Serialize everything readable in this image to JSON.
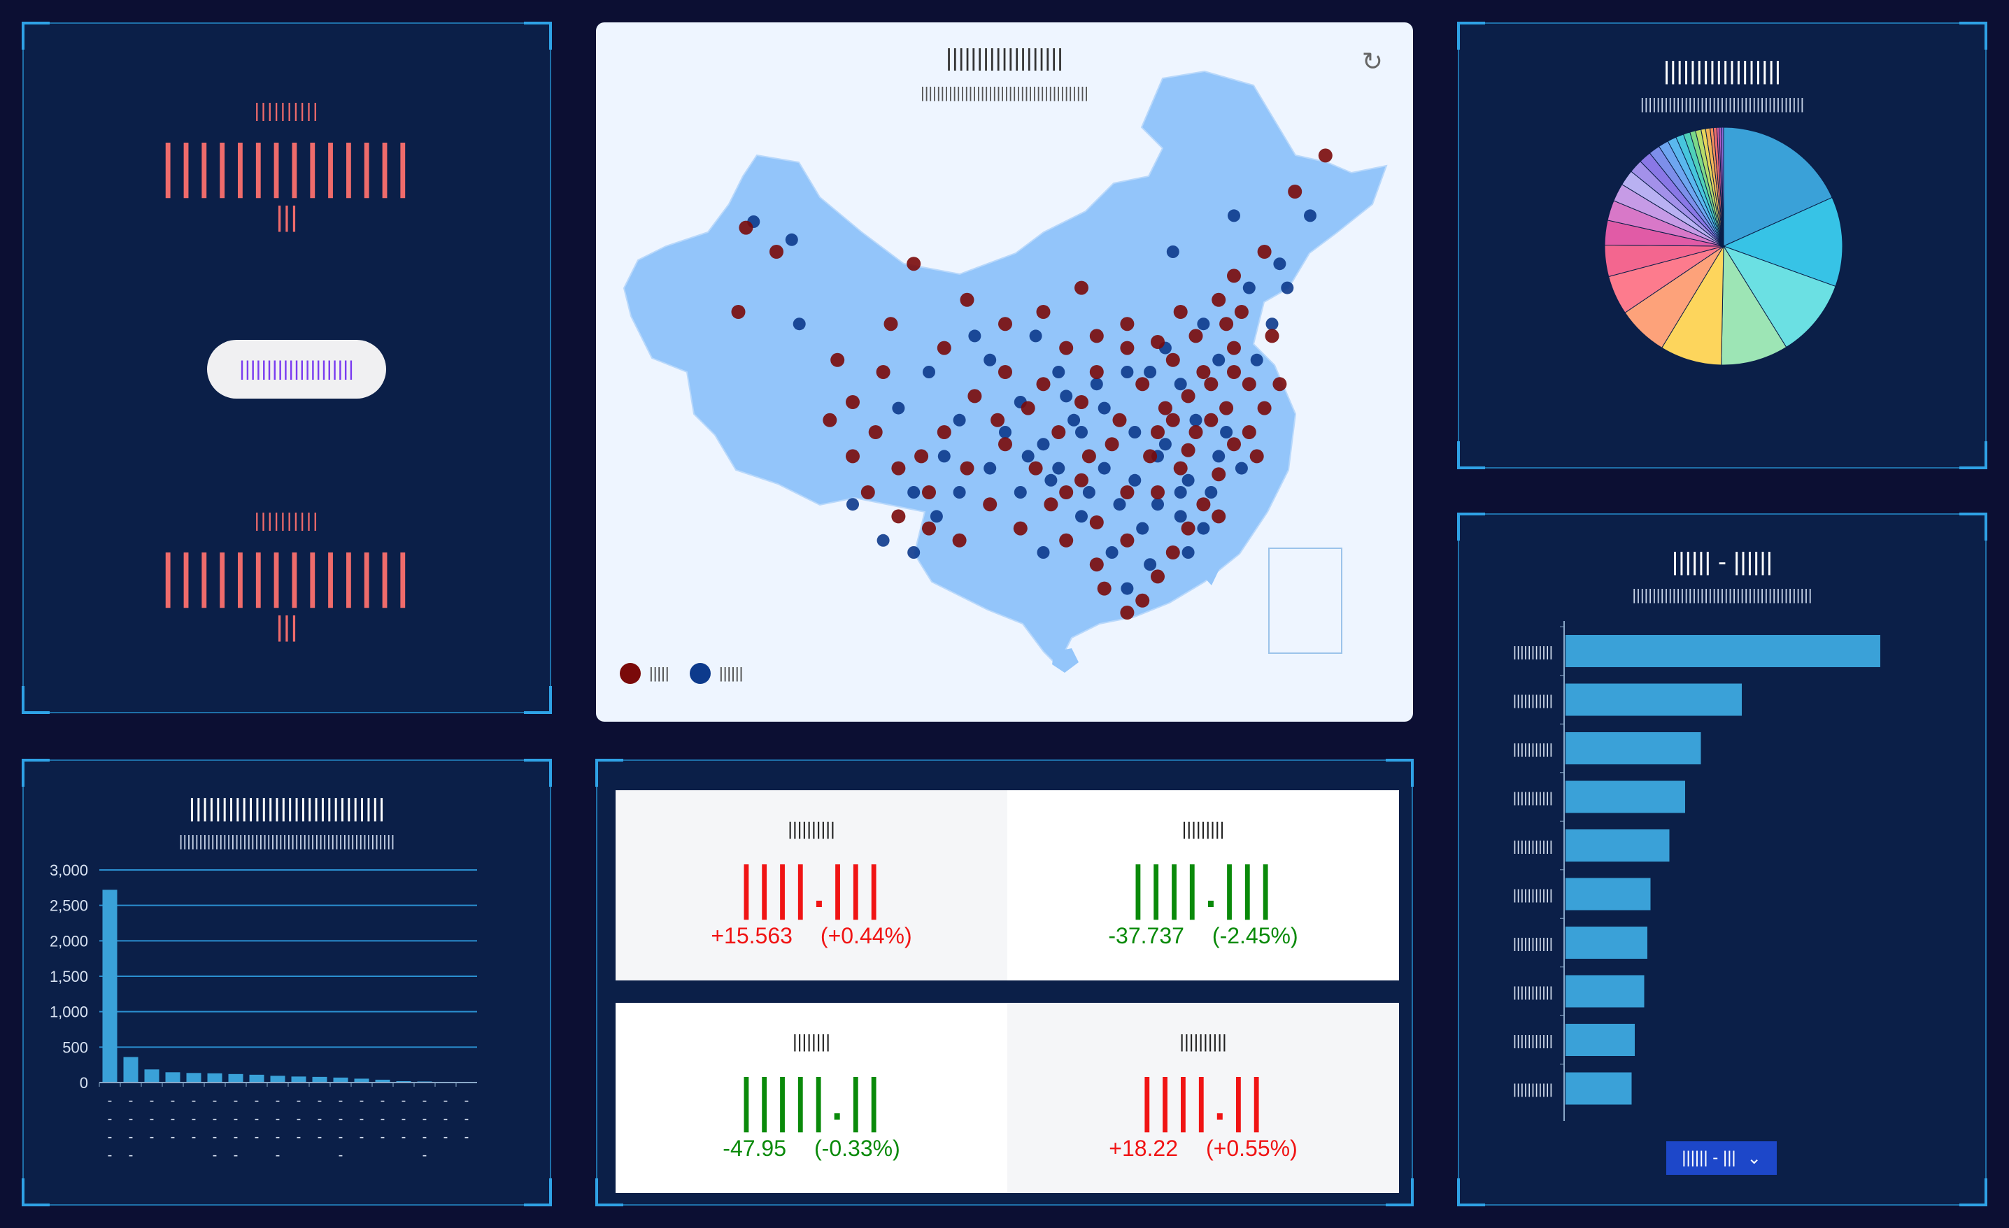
{
  "left_top": {
    "label1": "||||||||||",
    "value1": "||||||||||||||",
    "unit1": "|||",
    "button": "|||||||||||||||||||||",
    "label2": "||||||||||",
    "value2": "||||||||||||||",
    "unit2": "|||"
  },
  "map": {
    "title": "|||||||||||||||||||",
    "subtitle": "||||||||||||||||||||||||||||||||||||||||||",
    "legend": [
      {
        "label": "|||||",
        "color": "#7a0a0a"
      },
      {
        "label": "||||||",
        "color": "#0d3a8c"
      }
    ],
    "colors": {
      "land": "#93c5fa",
      "bg": "#eef5ff"
    },
    "points_a": [
      [
        0.16,
        0.26
      ],
      [
        0.2,
        0.3
      ],
      [
        0.15,
        0.4
      ],
      [
        0.3,
        0.55
      ],
      [
        0.28,
        0.48
      ],
      [
        0.42,
        0.46
      ],
      [
        0.5,
        0.5
      ],
      [
        0.55,
        0.52
      ],
      [
        0.6,
        0.55
      ],
      [
        0.62,
        0.5
      ],
      [
        0.64,
        0.62
      ],
      [
        0.7,
        0.6
      ],
      [
        0.72,
        0.58
      ],
      [
        0.74,
        0.63
      ],
      [
        0.78,
        0.67
      ],
      [
        0.76,
        0.72
      ],
      [
        0.72,
        0.8
      ],
      [
        0.68,
        0.88
      ],
      [
        0.62,
        0.82
      ],
      [
        0.58,
        0.78
      ],
      [
        0.66,
        0.7
      ],
      [
        0.7,
        0.45
      ],
      [
        0.73,
        0.4
      ],
      [
        0.78,
        0.38
      ],
      [
        0.8,
        0.34
      ],
      [
        0.84,
        0.3
      ],
      [
        0.88,
        0.2
      ],
      [
        0.92,
        0.14
      ],
      [
        0.66,
        0.42
      ],
      [
        0.6,
        0.36
      ],
      [
        0.55,
        0.4
      ],
      [
        0.5,
        0.42
      ],
      [
        0.45,
        0.38
      ],
      [
        0.38,
        0.32
      ],
      [
        0.35,
        0.42
      ],
      [
        0.32,
        0.7
      ],
      [
        0.36,
        0.74
      ],
      [
        0.4,
        0.7
      ],
      [
        0.45,
        0.66
      ],
      [
        0.5,
        0.62
      ],
      [
        0.54,
        0.66
      ],
      [
        0.58,
        0.7
      ],
      [
        0.62,
        0.75
      ],
      [
        0.66,
        0.78
      ],
      [
        0.7,
        0.7
      ],
      [
        0.74,
        0.54
      ],
      [
        0.76,
        0.5
      ],
      [
        0.8,
        0.46
      ],
      [
        0.82,
        0.6
      ],
      [
        0.84,
        0.56
      ],
      [
        0.8,
        0.62
      ],
      [
        0.77,
        0.58
      ],
      [
        0.73,
        0.66
      ],
      [
        0.69,
        0.64
      ],
      [
        0.65,
        0.58
      ],
      [
        0.61,
        0.64
      ],
      [
        0.57,
        0.6
      ],
      [
        0.53,
        0.56
      ],
      [
        0.49,
        0.58
      ],
      [
        0.46,
        0.54
      ],
      [
        0.42,
        0.6
      ],
      [
        0.39,
        0.64
      ],
      [
        0.72,
        0.48
      ],
      [
        0.75,
        0.44
      ],
      [
        0.79,
        0.42
      ],
      [
        0.81,
        0.4
      ],
      [
        0.85,
        0.44
      ],
      [
        0.86,
        0.52
      ],
      [
        0.83,
        0.64
      ],
      [
        0.78,
        0.74
      ],
      [
        0.74,
        0.76
      ],
      [
        0.7,
        0.84
      ],
      [
        0.66,
        0.9
      ],
      [
        0.63,
        0.86
      ],
      [
        0.6,
        0.68
      ],
      [
        0.56,
        0.72
      ],
      [
        0.52,
        0.76
      ],
      [
        0.48,
        0.72
      ],
      [
        0.44,
        0.78
      ],
      [
        0.4,
        0.76
      ],
      [
        0.36,
        0.66
      ],
      [
        0.33,
        0.6
      ],
      [
        0.3,
        0.64
      ],
      [
        0.27,
        0.58
      ],
      [
        0.34,
        0.5
      ],
      [
        0.58,
        0.46
      ],
      [
        0.62,
        0.44
      ],
      [
        0.66,
        0.46
      ],
      [
        0.68,
        0.52
      ],
      [
        0.71,
        0.56
      ],
      [
        0.75,
        0.6
      ],
      [
        0.79,
        0.56
      ],
      [
        0.82,
        0.52
      ],
      [
        0.8,
        0.5
      ],
      [
        0.77,
        0.52
      ]
    ],
    "points_b": [
      [
        0.17,
        0.25
      ],
      [
        0.22,
        0.28
      ],
      [
        0.23,
        0.42
      ],
      [
        0.36,
        0.56
      ],
      [
        0.4,
        0.5
      ],
      [
        0.48,
        0.48
      ],
      [
        0.52,
        0.55
      ],
      [
        0.57,
        0.5
      ],
      [
        0.6,
        0.6
      ],
      [
        0.63,
        0.56
      ],
      [
        0.67,
        0.6
      ],
      [
        0.7,
        0.64
      ],
      [
        0.73,
        0.7
      ],
      [
        0.76,
        0.76
      ],
      [
        0.74,
        0.8
      ],
      [
        0.69,
        0.82
      ],
      [
        0.64,
        0.8
      ],
      [
        0.6,
        0.74
      ],
      [
        0.56,
        0.68
      ],
      [
        0.52,
        0.7
      ],
      [
        0.48,
        0.66
      ],
      [
        0.44,
        0.7
      ],
      [
        0.41,
        0.74
      ],
      [
        0.38,
        0.8
      ],
      [
        0.34,
        0.78
      ],
      [
        0.66,
        0.5
      ],
      [
        0.71,
        0.46
      ],
      [
        0.76,
        0.42
      ],
      [
        0.82,
        0.36
      ],
      [
        0.86,
        0.32
      ],
      [
        0.9,
        0.24
      ],
      [
        0.8,
        0.24
      ],
      [
        0.72,
        0.3
      ],
      [
        0.54,
        0.44
      ],
      [
        0.46,
        0.44
      ],
      [
        0.44,
        0.58
      ],
      [
        0.5,
        0.6
      ],
      [
        0.55,
        0.62
      ],
      [
        0.59,
        0.58
      ],
      [
        0.63,
        0.66
      ],
      [
        0.67,
        0.68
      ],
      [
        0.71,
        0.62
      ],
      [
        0.75,
        0.58
      ],
      [
        0.79,
        0.6
      ],
      [
        0.81,
        0.66
      ],
      [
        0.77,
        0.7
      ],
      [
        0.73,
        0.74
      ],
      [
        0.68,
        0.76
      ],
      [
        0.65,
        0.72
      ],
      [
        0.61,
        0.7
      ],
      [
        0.57,
        0.66
      ],
      [
        0.53,
        0.64
      ],
      [
        0.69,
        0.5
      ],
      [
        0.73,
        0.52
      ],
      [
        0.78,
        0.48
      ],
      [
        0.83,
        0.48
      ],
      [
        0.85,
        0.42
      ],
      [
        0.87,
        0.36
      ],
      [
        0.62,
        0.52
      ],
      [
        0.58,
        0.54
      ],
      [
        0.42,
        0.64
      ],
      [
        0.38,
        0.7
      ],
      [
        0.3,
        0.72
      ],
      [
        0.55,
        0.8
      ],
      [
        0.66,
        0.86
      ],
      [
        0.78,
        0.64
      ],
      [
        0.74,
        0.68
      ],
      [
        0.7,
        0.72
      ]
    ]
  },
  "pie": {
    "title": "||||||||||||||||||",
    "subtitle": "|||||||||||||||||||||||||||||||||||||||||",
    "values": [
      120,
      80,
      70,
      60,
      55,
      45,
      35,
      28,
      22,
      18,
      16,
      14,
      12,
      11,
      10,
      9,
      8,
      7,
      6,
      5,
      5,
      4,
      4,
      3,
      3,
      2,
      2,
      2
    ],
    "colors": [
      "#3aa1d8",
      "#37c3e6",
      "#6be0e3",
      "#9de5b5",
      "#fdd55c",
      "#fda27a",
      "#fd7b8d",
      "#f3668f",
      "#e15ba6",
      "#d878c8",
      "#c69be6",
      "#b9b1f2",
      "#a391ea",
      "#8a78e6",
      "#7d8fea",
      "#6ea6f0",
      "#5ab8ee",
      "#47c6dd",
      "#4fd1b9",
      "#7bd989",
      "#b6dc6a",
      "#e8d55b",
      "#f2b456",
      "#f48f5a",
      "#ee6c6c",
      "#dd5c9b",
      "#b35cc8",
      "#8a6bd8"
    ]
  },
  "bar_left": {
    "title": "||||||||||||||||||||||||||||||",
    "subtitle": "||||||||||||||||||||||||||||||||||||||||||||||||||||||",
    "accent": "#3aa1d8"
  },
  "stats": [
    {
      "label": "||||||||||",
      "value": "||||.|||",
      "change": "+15.563",
      "pct": "(+0.44%)",
      "dir": "up"
    },
    {
      "label": "|||||||||",
      "value": "||||.|||",
      "change": "-37.737",
      "pct": "(-2.45%)",
      "dir": "down"
    },
    {
      "label": "||||||||",
      "value": "|||||.||",
      "change": "-47.95",
      "pct": "(-0.33%)",
      "dir": "down"
    },
    {
      "label": "||||||||||",
      "value": "||||.||",
      "change": "+18.22",
      "pct": "(+0.55%)",
      "dir": "up"
    }
  ],
  "bar_right": {
    "title": "|||||| - ||||||",
    "subtitle": "|||||||||||||||||||||||||||||||||||||||||||||",
    "select_label": "|||||| - |||",
    "accent": "#3aa1d8"
  },
  "chart_data": [
    {
      "type": "bar",
      "ylim": [
        0,
        3000
      ],
      "yticks": [
        "3,000",
        "2,500",
        "2,000",
        "1,500",
        "1,000",
        "500",
        "0"
      ],
      "xticks": [
        "- - - -",
        "- - - -",
        "- - -",
        "- - -",
        "- - -",
        "- - - -",
        "- - - -",
        "- - -",
        "- - - -",
        "- - -",
        "- - -",
        "- - - -",
        "- - -",
        "- - -",
        "- - -",
        "- - - -",
        "- - -",
        "- - -"
      ],
      "values": [
        2720,
        360,
        185,
        145,
        135,
        130,
        120,
        110,
        95,
        85,
        80,
        70,
        55,
        40,
        20,
        15,
        10,
        5
      ]
    },
    {
      "type": "bar",
      "orientation": "horizontal",
      "categories": [
        "|||||||||||",
        "|||||||||||",
        "|||||||||||",
        "|||||||||||",
        "|||||||||||",
        "|||||||||||",
        "|||||||||||",
        "|||||||||||",
        "|||||||||||",
        "|||||||||||"
      ],
      "values": [
        100,
        56,
        43,
        38,
        33,
        27,
        26,
        25,
        22,
        21
      ]
    },
    {
      "type": "pie",
      "values": [
        120,
        80,
        70,
        60,
        55,
        45,
        35,
        28,
        22,
        18,
        16,
        14,
        12,
        11,
        10,
        9,
        8,
        7,
        6,
        5,
        5,
        4,
        4,
        3,
        3,
        2,
        2,
        2
      ]
    }
  ]
}
